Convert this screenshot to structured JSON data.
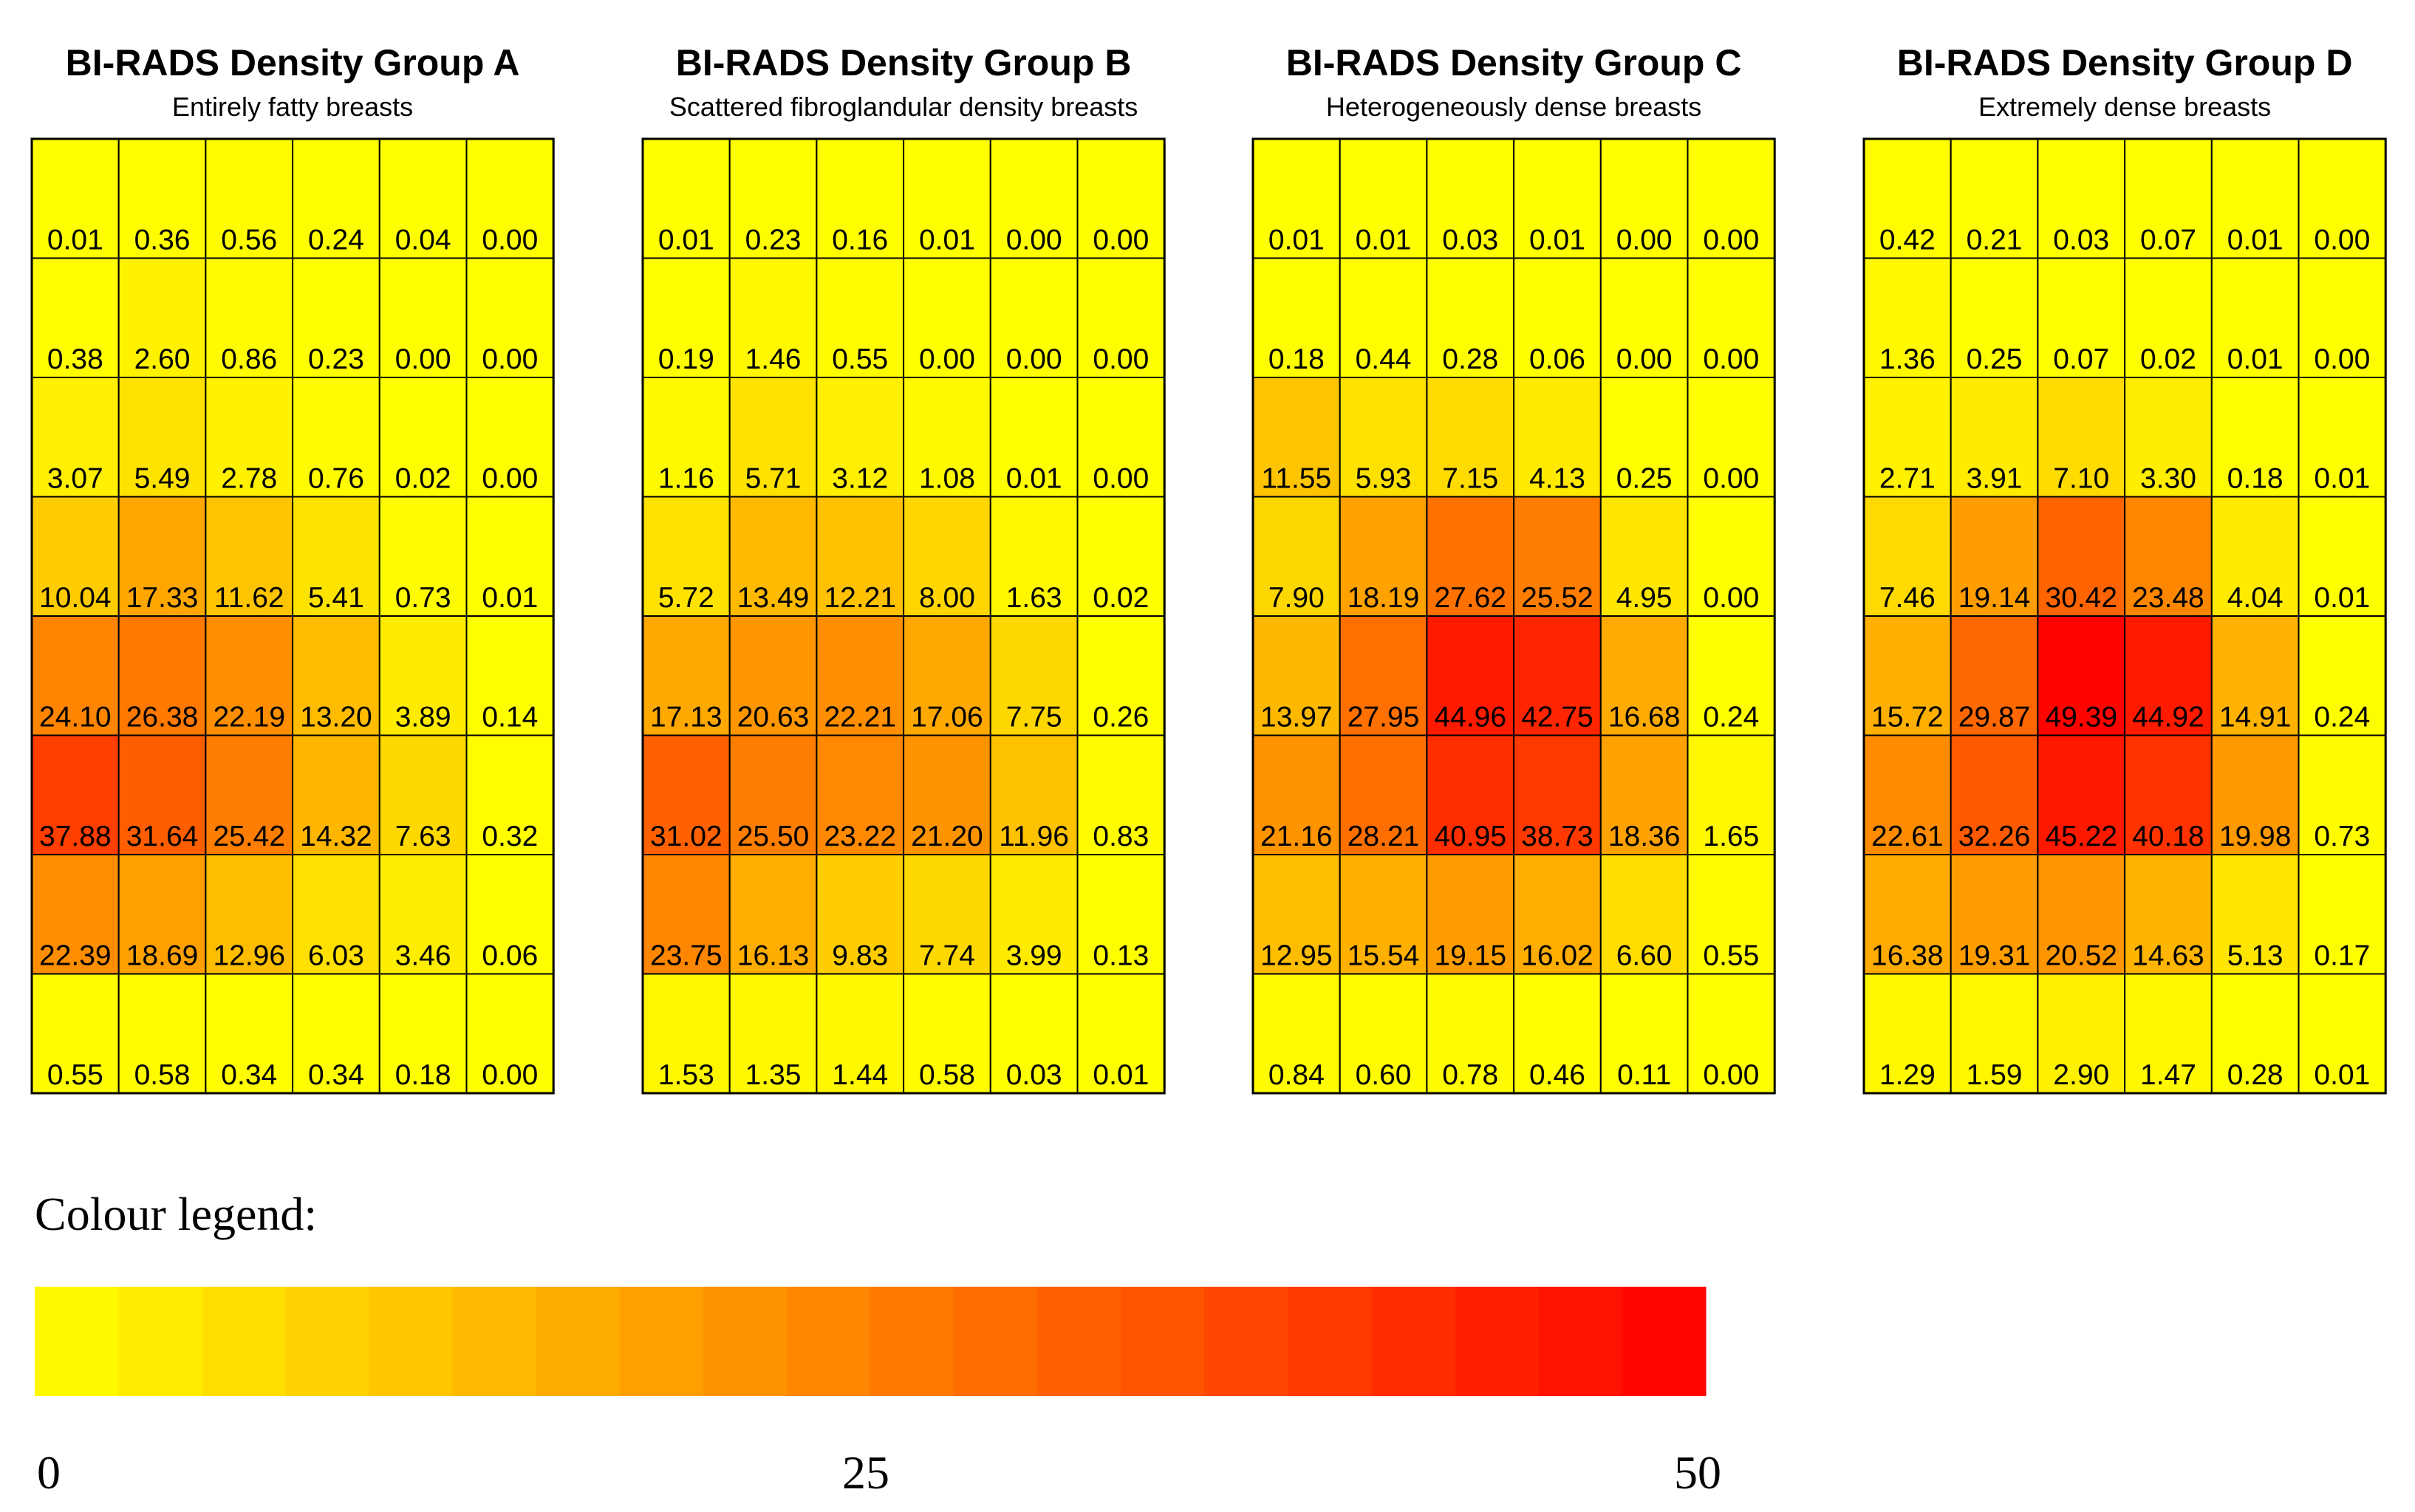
{
  "chart_data": [
    {
      "type": "heatmap",
      "title": "BI-RADS Density Group A",
      "subtitle": "Entirely fatty breasts",
      "rows": [
        [
          "0.01",
          "0.36",
          "0.56",
          "0.24",
          "0.04",
          "0.00"
        ],
        [
          "0.38",
          "2.60",
          "0.86",
          "0.23",
          "0.00",
          "0.00"
        ],
        [
          "3.07",
          "5.49",
          "2.78",
          "0.76",
          "0.02",
          "0.00"
        ],
        [
          "10.04",
          "17.33",
          "11.62",
          "5.41",
          "0.73",
          "0.01"
        ],
        [
          "24.10",
          "26.38",
          "22.19",
          "13.20",
          "3.89",
          "0.14"
        ],
        [
          "37.88",
          "31.64",
          "25.42",
          "14.32",
          "7.63",
          "0.32"
        ],
        [
          "22.39",
          "18.69",
          "12.96",
          "6.03",
          "3.46",
          "0.06"
        ],
        [
          "0.55",
          "0.58",
          "0.34",
          "0.34",
          "0.18",
          "0.00"
        ]
      ]
    },
    {
      "type": "heatmap",
      "title": "BI-RADS Density Group B",
      "subtitle": "Scattered fibroglandular density breasts",
      "rows": [
        [
          "0.01",
          "0.23",
          "0.16",
          "0.01",
          "0.00",
          "0.00"
        ],
        [
          "0.19",
          "1.46",
          "0.55",
          "0.00",
          "0.00",
          "0.00"
        ],
        [
          "1.16",
          "5.71",
          "3.12",
          "1.08",
          "0.01",
          "0.00"
        ],
        [
          "5.72",
          "13.49",
          "12.21",
          "8.00",
          "1.63",
          "0.02"
        ],
        [
          "17.13",
          "20.63",
          "22.21",
          "17.06",
          "7.75",
          "0.26"
        ],
        [
          "31.02",
          "25.50",
          "23.22",
          "21.20",
          "11.96",
          "0.83"
        ],
        [
          "23.75",
          "16.13",
          "9.83",
          "7.74",
          "3.99",
          "0.13"
        ],
        [
          "1.53",
          "1.35",
          "1.44",
          "0.58",
          "0.03",
          "0.01"
        ]
      ]
    },
    {
      "type": "heatmap",
      "title": "BI-RADS Density Group C",
      "subtitle": "Heterogeneously dense breasts",
      "rows": [
        [
          "0.01",
          "0.01",
          "0.03",
          "0.01",
          "0.00",
          "0.00"
        ],
        [
          "0.18",
          "0.44",
          "0.28",
          "0.06",
          "0.00",
          "0.00"
        ],
        [
          "11.55",
          "5.93",
          "7.15",
          "4.13",
          "0.25",
          "0.00"
        ],
        [
          "7.90",
          "18.19",
          "27.62",
          "25.52",
          "4.95",
          "0.00"
        ],
        [
          "13.97",
          "27.95",
          "44.96",
          "42.75",
          "16.68",
          "0.24"
        ],
        [
          "21.16",
          "28.21",
          "40.95",
          "38.73",
          "18.36",
          "1.65"
        ],
        [
          "12.95",
          "15.54",
          "19.15",
          "16.02",
          "6.60",
          "0.55"
        ],
        [
          "0.84",
          "0.60",
          "0.78",
          "0.46",
          "0.11",
          "0.00"
        ]
      ]
    },
    {
      "type": "heatmap",
      "title": "BI-RADS Density Group D",
      "subtitle": "Extremely dense breasts",
      "rows": [
        [
          "0.42",
          "0.21",
          "0.03",
          "0.07",
          "0.01",
          "0.00"
        ],
        [
          "1.36",
          "0.25",
          "0.07",
          "0.02",
          "0.01",
          "0.00"
        ],
        [
          "2.71",
          "3.91",
          "7.10",
          "3.30",
          "0.18",
          "0.01"
        ],
        [
          "7.46",
          "19.14",
          "30.42",
          "23.48",
          "4.04",
          "0.01"
        ],
        [
          "15.72",
          "29.87",
          "49.39",
          "44.92",
          "14.91",
          "0.24"
        ],
        [
          "22.61",
          "32.26",
          "45.22",
          "40.18",
          "19.98",
          "0.73"
        ],
        [
          "16.38",
          "19.31",
          "20.52",
          "14.63",
          "5.13",
          "0.17"
        ],
        [
          "1.29",
          "1.59",
          "2.90",
          "1.47",
          "0.28",
          "0.01"
        ]
      ]
    }
  ],
  "legend": {
    "title": "Colour legend:",
    "min": 0,
    "max": 50,
    "steps": 20,
    "ticks": [
      "0",
      "25",
      "50"
    ],
    "colors": [
      "#ffff00",
      "#ffff00",
      "#ffee00",
      "#ffdd00",
      "#ffcc00",
      "#ffbb00",
      "#ffaa00",
      "#ff9900",
      "#ff8800",
      "#ff7700",
      "#ff6600",
      "#ff5500",
      "#ff4400",
      "#ff3300",
      "#ff2200",
      "#ff1100",
      "#ff0000"
    ]
  }
}
